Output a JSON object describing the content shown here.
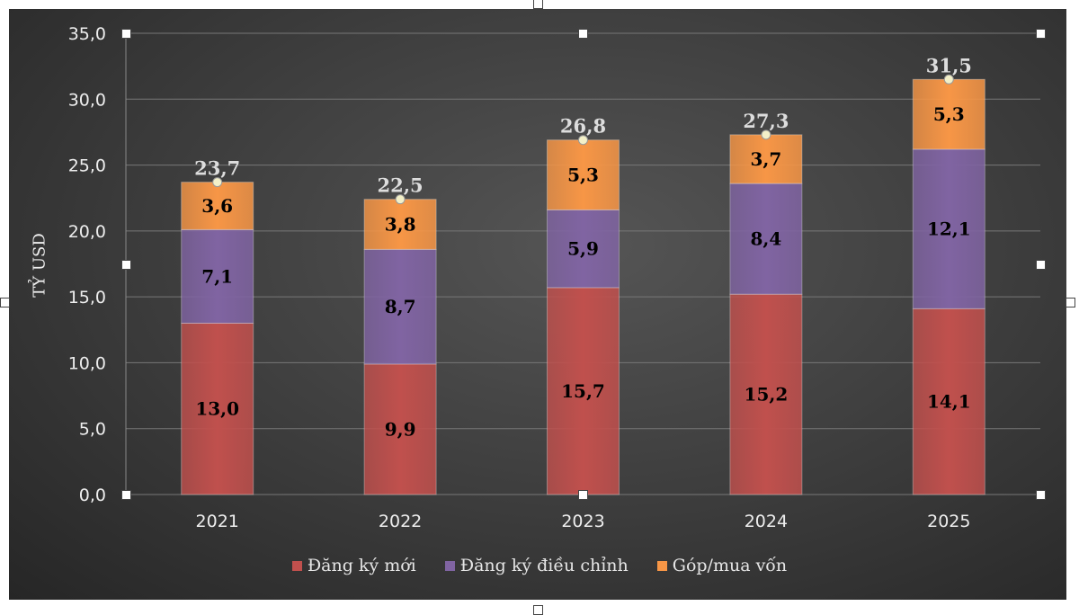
{
  "chart_data": {
    "type": "bar",
    "stacked": true,
    "categories": [
      "2021",
      "2022",
      "2023",
      "2024",
      "2025"
    ],
    "series": [
      {
        "name": "Đăng ký mới",
        "values": [
          13.0,
          9.9,
          15.7,
          15.2,
          14.1
        ],
        "labels": [
          "13,0",
          "9,9",
          "15,7",
          "15,2",
          "14,1"
        ],
        "color": "#c0504d"
      },
      {
        "name": "Đăng ký điều chỉnh",
        "values": [
          7.1,
          8.7,
          5.9,
          8.4,
          12.1
        ],
        "labels": [
          "7,1",
          "8,7",
          "5,9",
          "8,4",
          "12,1"
        ],
        "color": "#8064a2"
      },
      {
        "name": "Góp/mua vốn",
        "values": [
          3.6,
          3.8,
          5.3,
          3.7,
          5.3
        ],
        "labels": [
          "3,6",
          "3,8",
          "5,3",
          "3,7",
          "5,3"
        ],
        "color": "#f79646"
      }
    ],
    "totals": [
      "23,7",
      "22,5",
      "26,8",
      "27,3",
      "31,5"
    ],
    "ylabel": "TỶ USD",
    "ylim": [
      0,
      35
    ],
    "yticks": [
      "0,0",
      "5,0",
      "10,0",
      "15,0",
      "20,0",
      "25,0",
      "30,0",
      "35,0"
    ],
    "grid": true,
    "legend": "bottom",
    "background": "#3a3a3a"
  }
}
